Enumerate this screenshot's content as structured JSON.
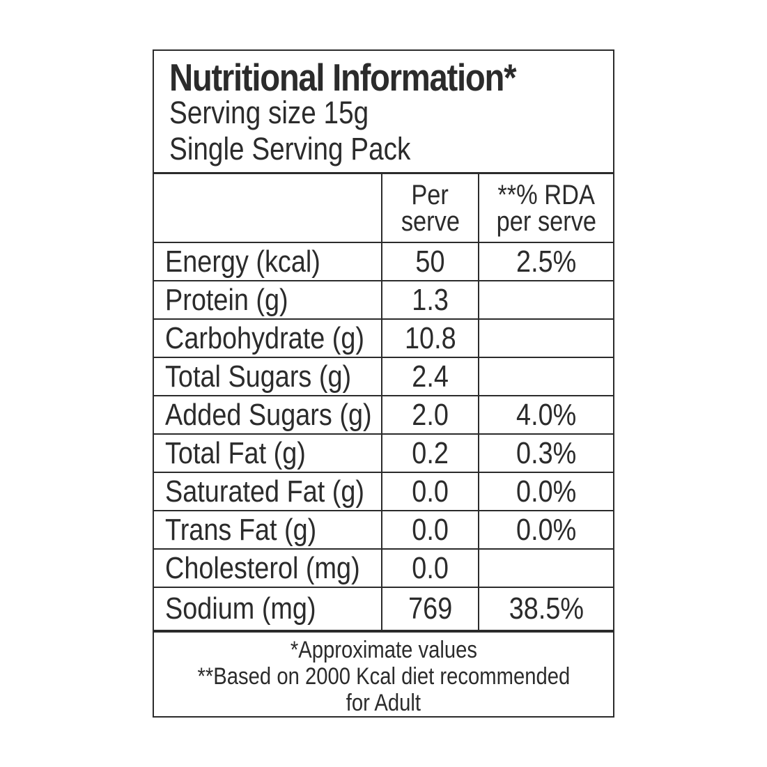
{
  "header": {
    "title": "Nutritional Information*",
    "serving_size": "Serving size 15g",
    "pack": "Single Serving Pack"
  },
  "columns": {
    "nutrient": "",
    "per_serve_line1": "Per",
    "per_serve_line2": "serve",
    "rda_line1": "**% RDA",
    "rda_line2": "per serve"
  },
  "rows": [
    {
      "name": "Energy (kcal)",
      "per_serve": "50",
      "rda": "2.5%"
    },
    {
      "name": "Protein (g)",
      "per_serve": "1.3",
      "rda": ""
    },
    {
      "name": "Carbohydrate (g)",
      "per_serve": "10.8",
      "rda": ""
    },
    {
      "name": "Total Sugars (g)",
      "per_serve": "2.4",
      "rda": ""
    },
    {
      "name": "Added Sugars (g)",
      "per_serve": "2.0",
      "rda": "4.0%"
    },
    {
      "name": "Total Fat (g)",
      "per_serve": "0.2",
      "rda": "0.3%"
    },
    {
      "name": "Saturated Fat (g)",
      "per_serve": "0.0",
      "rda": "0.0%"
    },
    {
      "name": "Trans Fat (g)",
      "per_serve": "0.0",
      "rda": "0.0%"
    },
    {
      "name": "Cholesterol (mg)",
      "per_serve": "0.0",
      "rda": ""
    },
    {
      "name": "Sodium (mg)",
      "per_serve": "769",
      "rda": "38.5%"
    }
  ],
  "footer": {
    "note1": "*Approximate values",
    "note2": "**Based on 2000 Kcal diet recommended",
    "note3": "for Adult"
  }
}
